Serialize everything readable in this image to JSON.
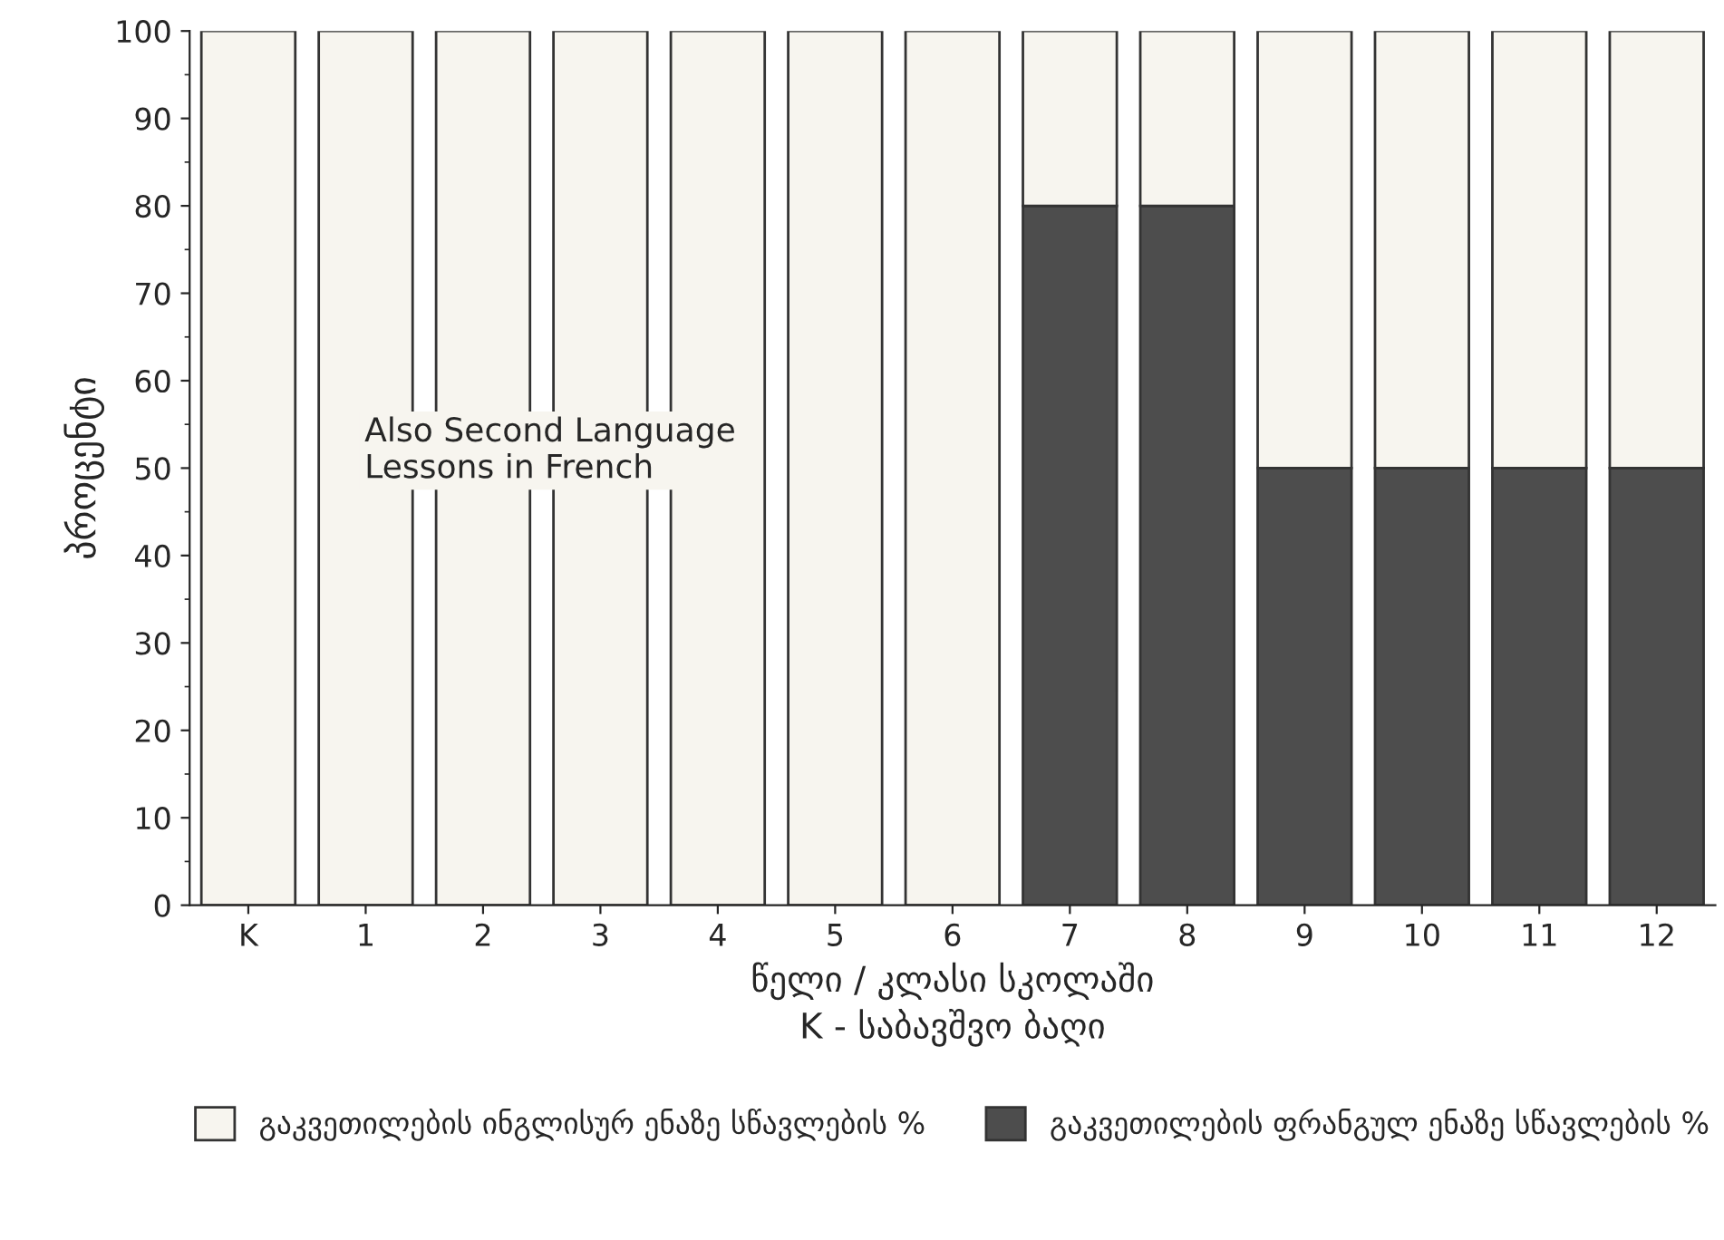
{
  "chart_data": {
    "type": "bar",
    "stacked": true,
    "ylabel": "პროცენტი",
    "xlabel": "წელი / კლასი სკოლაში\nK - საბავშვო ბაღი",
    "categories": [
      "K",
      "1",
      "2",
      "3",
      "4",
      "5",
      "6",
      "7",
      "8",
      "9",
      "10",
      "11",
      "12"
    ],
    "series": [
      {
        "name": "გაკვეთილების ფრანგულ ენაზე სწავლების %",
        "color": "#4d4d4d",
        "values": [
          0,
          0,
          0,
          0,
          0,
          0,
          0,
          80,
          80,
          50,
          50,
          50,
          50
        ]
      },
      {
        "name": "გაკვეთილების ინგლისურ ენაზე სწავლების %",
        "color": "#f7f5ef",
        "values": [
          100,
          100,
          100,
          100,
          100,
          100,
          100,
          20,
          20,
          50,
          50,
          50,
          50
        ]
      }
    ],
    "ylim": [
      0,
      100
    ],
    "yticks": [
      0,
      10,
      20,
      30,
      40,
      50,
      60,
      70,
      80,
      90,
      100
    ],
    "annotations": [
      "Also Second Language\nLessons in French"
    ],
    "legend": "bottom",
    "grid": false
  }
}
